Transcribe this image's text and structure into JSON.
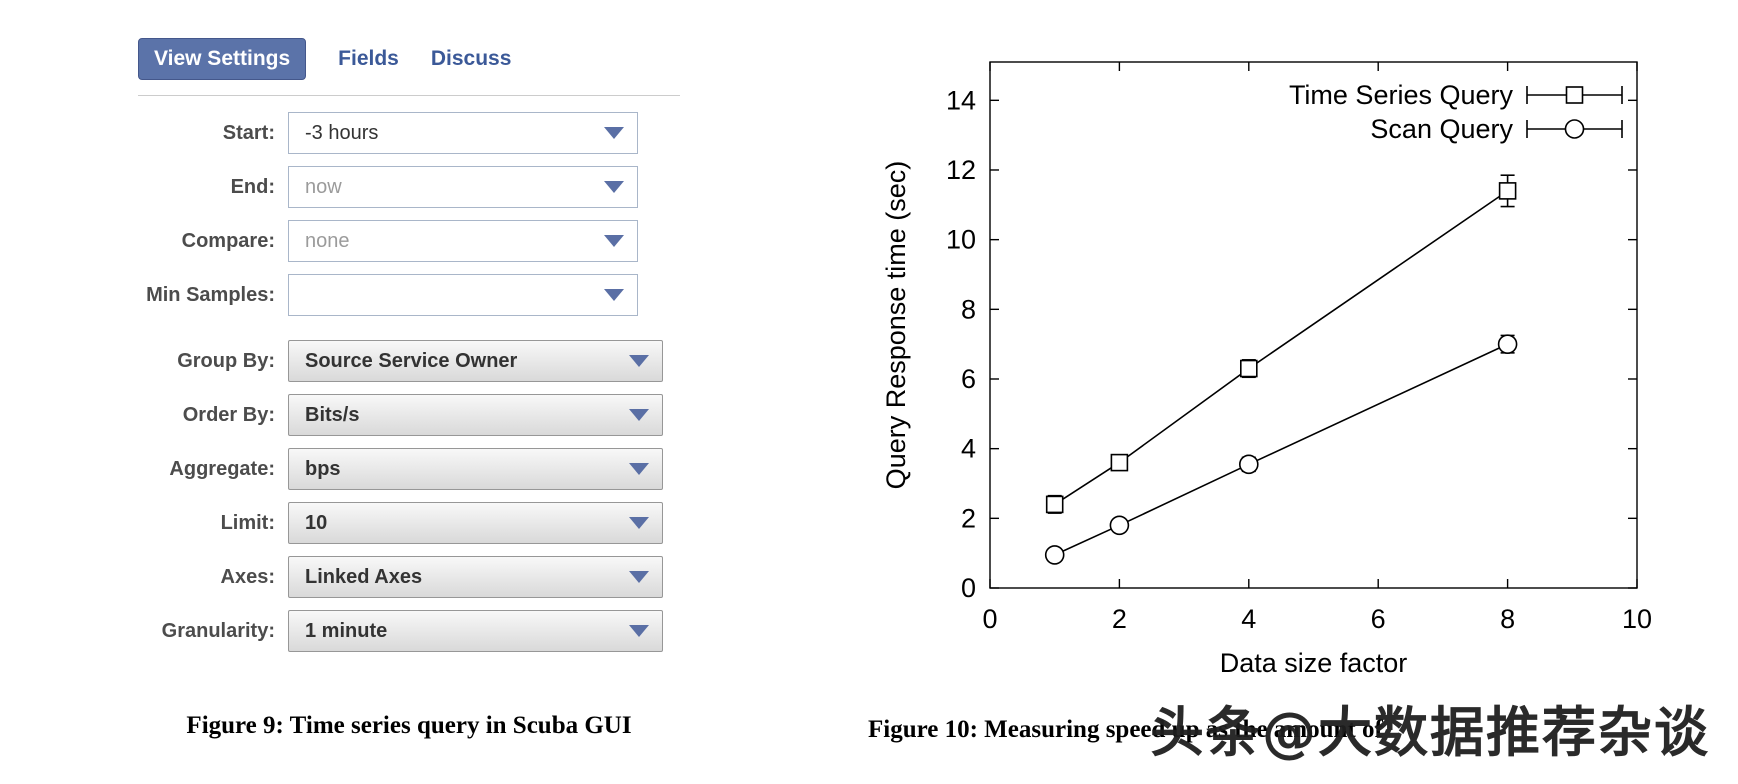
{
  "figure9": {
    "tabs": [
      {
        "label": "View Settings"
      },
      {
        "label": "Fields"
      },
      {
        "label": "Discuss"
      }
    ],
    "form": [
      {
        "label": "Start:",
        "value": "-3 hours"
      },
      {
        "label": "End:",
        "value": "now"
      },
      {
        "label": "Compare:",
        "value": "none"
      },
      {
        "label": "Min Samples:",
        "value": ""
      },
      {
        "label": "Group By:",
        "value": "Source Service Owner"
      },
      {
        "label": "Order By:",
        "value": "Bits/s"
      },
      {
        "label": "Aggregate:",
        "value": "bps"
      },
      {
        "label": "Limit:",
        "value": "10"
      },
      {
        "label": "Axes:",
        "value": "Linked Axes"
      },
      {
        "label": "Granularity:",
        "value": "1 minute"
      }
    ],
    "caption": "Figure 9: Time series query in Scuba GUI"
  },
  "figure10": {
    "caption": "Figure 10: Measuring speed up as the amount of",
    "watermark": "头条@大数据推荐杂谈"
  },
  "chart_data": {
    "type": "line",
    "title": "",
    "xlabel": "Data size factor",
    "ylabel": "Query Response time (sec)",
    "xlim": [
      0,
      10
    ],
    "ylim": [
      0,
      14
    ],
    "xticks": [
      0,
      2,
      4,
      6,
      8,
      10
    ],
    "yticks": [
      0,
      2,
      4,
      6,
      8,
      10,
      12,
      14
    ],
    "grid": false,
    "legend_position": "top-right",
    "series": [
      {
        "name": "Time Series Query",
        "marker": "square",
        "x": [
          1,
          2,
          4,
          8
        ],
        "y": [
          2.4,
          3.6,
          6.3,
          11.4
        ],
        "yerr": [
          0.25,
          0.15,
          0.25,
          0.45
        ]
      },
      {
        "name": "Scan Query",
        "marker": "circle",
        "x": [
          1,
          2,
          4,
          8
        ],
        "y": [
          0.95,
          1.8,
          3.55,
          7.0
        ],
        "yerr": [
          0.1,
          0.12,
          0.2,
          0.25
        ]
      }
    ]
  }
}
